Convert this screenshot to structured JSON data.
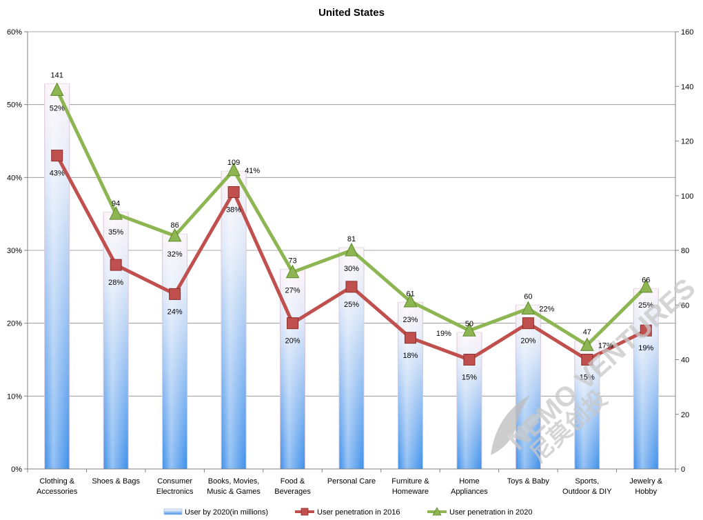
{
  "chart_data": {
    "type": "bar+line",
    "title": "United States",
    "categories": [
      [
        "Clothing &",
        "Accessories"
      ],
      [
        "Shoes & Bags"
      ],
      [
        "Consumer",
        "Electronics"
      ],
      [
        "Books, Movies,",
        "Music & Games"
      ],
      [
        "Food &",
        "Beverages"
      ],
      [
        "Personal Care"
      ],
      [
        "Furniture &",
        "Homeware"
      ],
      [
        "Home",
        "Appliances"
      ],
      [
        "Toys & Baby"
      ],
      [
        "Sports,",
        "Outdoor & DIY"
      ],
      [
        "Jewelry &",
        "Hobby"
      ]
    ],
    "left_axis": {
      "ylim": [
        0,
        60
      ],
      "ticks": [
        "0%",
        "10%",
        "20%",
        "30%",
        "40%",
        "50%",
        "60%"
      ]
    },
    "right_axis": {
      "ylim": [
        0,
        160
      ],
      "ticks": [
        "0",
        "20",
        "40",
        "60",
        "80",
        "100",
        "120",
        "140",
        "160"
      ]
    },
    "series": [
      {
        "name": "User by 2020(in millions)",
        "kind": "bar",
        "axis": "right",
        "values": [
          141,
          94,
          86,
          109,
          73,
          81,
          61,
          50,
          60,
          47,
          66
        ],
        "labels": [
          "141",
          "94",
          "86",
          "109",
          "73",
          "81",
          "61",
          "50",
          "60",
          "47",
          "66"
        ],
        "color": "#5aa2ef"
      },
      {
        "name": "User penetration in 2016",
        "kind": "line",
        "axis": "left",
        "marker": "square",
        "values": [
          43,
          28,
          24,
          38,
          20,
          25,
          18,
          15,
          20,
          15,
          19
        ],
        "labels": [
          "43%",
          "28%",
          "24%",
          "38%",
          "20%",
          "25%",
          "18%",
          "15%",
          "20%",
          "15%",
          "19%"
        ],
        "color": "#c0504d"
      },
      {
        "name": "User penetration in 2020",
        "kind": "line",
        "axis": "left",
        "marker": "triangle",
        "values": [
          52,
          35,
          32,
          41,
          27,
          30,
          23,
          19,
          22,
          17,
          25
        ],
        "labels": [
          "52%",
          "35%",
          "32%",
          "41%",
          "27%",
          "30%",
          "23%",
          "19%",
          "22%",
          "17%",
          "25%"
        ],
        "color": "#8db652"
      }
    ],
    "legend": {
      "position": "bottom",
      "items": [
        "User by 2020(in millions)",
        "User penetration in 2016",
        "User penetration in 2020"
      ]
    }
  },
  "watermark": {
    "text_en": "NEMO VENTURES",
    "text_cn": "尼莫创投",
    "logo": "nemo-fish-logo"
  }
}
